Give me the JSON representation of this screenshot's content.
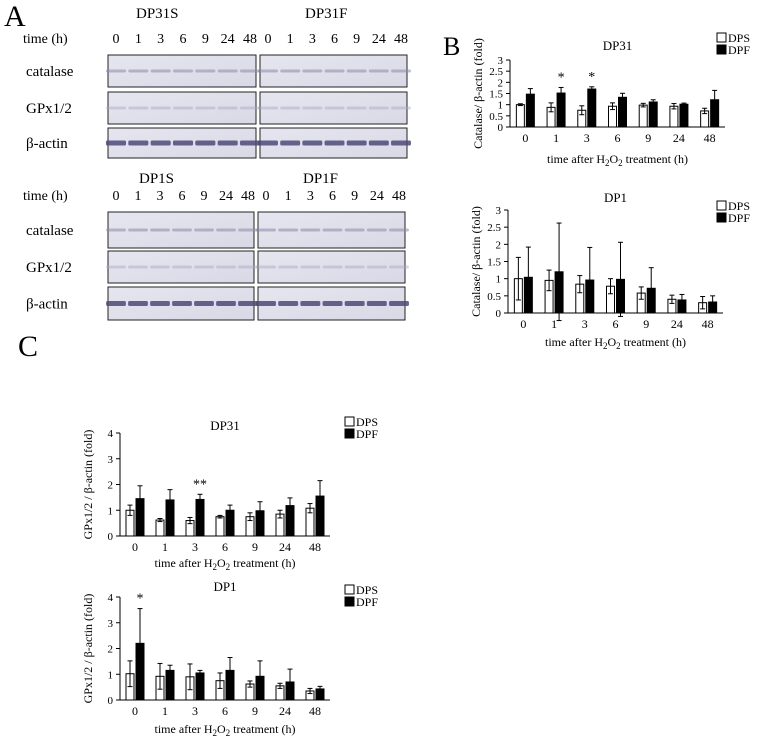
{
  "panel_labels": {
    "a": "A",
    "b": "B",
    "c": "C"
  },
  "blots": {
    "time_label": "time (h)",
    "times": [
      "0",
      "1",
      "3",
      "6",
      "9",
      "24",
      "48"
    ],
    "rows": [
      "catalase",
      "GPx1/2",
      "β-actin"
    ],
    "groups": [
      {
        "left_title": "DP31S",
        "right_title": "DP31F"
      },
      {
        "left_title": "DP1S",
        "right_title": "DP1F"
      }
    ]
  },
  "legend": {
    "dps": "DPS",
    "dpf": "DPF"
  },
  "colors": {
    "dps_fill": "#ffffff",
    "dpf_fill": "#000000",
    "axis": "#000000"
  },
  "chart_data": [
    {
      "type": "bar",
      "panel": "B",
      "title": "DP31",
      "ylabel": "Catalase/ β-actin (fold)",
      "xlabel": "time after H2O2 treatment (h)",
      "categories": [
        "0",
        "1",
        "3",
        "6",
        "9",
        "24",
        "48"
      ],
      "ylim": [
        0,
        3
      ],
      "yticks": [
        "0",
        "0.5",
        "1",
        "1.5",
        "2",
        "2.5",
        "3"
      ],
      "series": [
        {
          "name": "DPS",
          "values": [
            1.0,
            0.88,
            0.75,
            0.93,
            0.98,
            0.93,
            0.72
          ],
          "errors": [
            0.04,
            0.2,
            0.2,
            0.15,
            0.08,
            0.12,
            0.12
          ]
        },
        {
          "name": "DPF",
          "values": [
            1.47,
            1.52,
            1.7,
            1.33,
            1.12,
            1.02,
            1.22
          ],
          "errors": [
            0.25,
            0.25,
            0.1,
            0.18,
            0.1,
            0.05,
            0.42
          ]
        }
      ],
      "annotations": [
        {
          "category": "1",
          "text": "*"
        },
        {
          "category": "3",
          "text": "*"
        }
      ]
    },
    {
      "type": "bar",
      "panel": "B",
      "title": "DP1",
      "ylabel": "Catalase/ β-actin (fold)",
      "xlabel": "time after H2O2 treatment (h)",
      "categories": [
        "0",
        "1",
        "3",
        "6",
        "9",
        "24",
        "48"
      ],
      "ylim": [
        0,
        3
      ],
      "yticks": [
        "0",
        "0.5",
        "1",
        "1.5",
        "2",
        "2.5",
        "3"
      ],
      "series": [
        {
          "name": "DPS",
          "values": [
            1.0,
            0.95,
            0.84,
            0.78,
            0.58,
            0.4,
            0.3
          ],
          "errors": [
            0.62,
            0.3,
            0.25,
            0.22,
            0.18,
            0.12,
            0.18
          ]
        },
        {
          "name": "DPF",
          "values": [
            1.04,
            1.2,
            0.96,
            0.98,
            0.72,
            0.38,
            0.32
          ],
          "errors": [
            0.88,
            1.42,
            0.95,
            1.08,
            0.6,
            0.16,
            0.18
          ]
        }
      ],
      "annotations": []
    },
    {
      "type": "bar",
      "panel": "C",
      "title": "DP31",
      "ylabel": "GPx1/2 / β-actin (fold)",
      "xlabel": "time after H2O2 treatment (h)",
      "categories": [
        "0",
        "1",
        "3",
        "6",
        "9",
        "24",
        "48"
      ],
      "ylim": [
        0,
        4
      ],
      "yticks": [
        "0",
        "1",
        "2",
        "3",
        "4"
      ],
      "series": [
        {
          "name": "DPS",
          "values": [
            1.0,
            0.62,
            0.6,
            0.75,
            0.75,
            0.85,
            1.08
          ],
          "errors": [
            0.2,
            0.06,
            0.12,
            0.05,
            0.15,
            0.15,
            0.18
          ]
        },
        {
          "name": "DPF",
          "values": [
            1.45,
            1.4,
            1.42,
            1.0,
            0.98,
            1.18,
            1.55
          ],
          "errors": [
            0.5,
            0.4,
            0.2,
            0.2,
            0.35,
            0.3,
            0.6
          ]
        }
      ],
      "annotations": [
        {
          "category": "3",
          "text": "**"
        }
      ]
    },
    {
      "type": "bar",
      "panel": "C",
      "title": "DP1",
      "ylabel": "GPx1/2 / β-actin (fold)",
      "xlabel": "time after H2O2 treatment (h)",
      "categories": [
        "0",
        "1",
        "3",
        "6",
        "9",
        "24",
        "48"
      ],
      "ylim": [
        0,
        4
      ],
      "yticks": [
        "0",
        "1",
        "2",
        "3",
        "4"
      ],
      "series": [
        {
          "name": "DPS",
          "values": [
            1.02,
            0.92,
            0.9,
            0.75,
            0.62,
            0.55,
            0.35
          ],
          "errors": [
            0.5,
            0.5,
            0.5,
            0.3,
            0.12,
            0.1,
            0.1
          ]
        },
        {
          "name": "DPF",
          "values": [
            2.2,
            1.15,
            1.05,
            1.15,
            0.92,
            0.7,
            0.43
          ],
          "errors": [
            1.35,
            0.2,
            0.1,
            0.5,
            0.6,
            0.5,
            0.1
          ]
        }
      ],
      "annotations": [
        {
          "category": "0",
          "text": "*"
        }
      ]
    }
  ]
}
